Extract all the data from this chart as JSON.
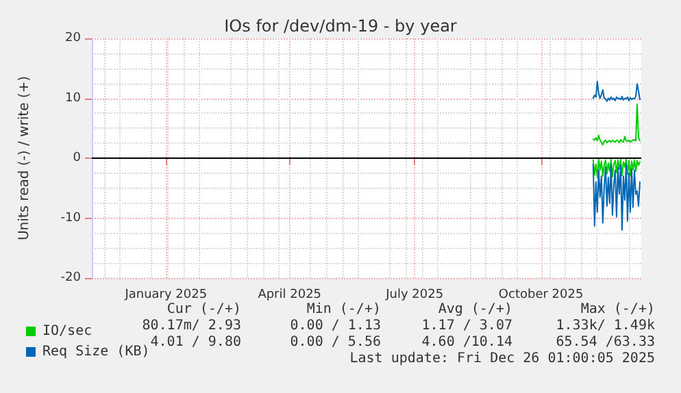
{
  "chart_data": {
    "type": "line",
    "title": "IOs for /dev/dm-19 - by year",
    "ylabel": "Units read (-) / write (+)",
    "x": [
      "2025-11-22",
      "2025-11-23",
      "2025-11-24",
      "2025-11-25",
      "2025-11-26",
      "2025-11-27",
      "2025-11-28",
      "2025-11-29",
      "2025-11-30",
      "2025-12-01",
      "2025-12-02",
      "2025-12-03",
      "2025-12-04",
      "2025-12-05",
      "2025-12-06",
      "2025-12-07",
      "2025-12-08",
      "2025-12-09",
      "2025-12-10",
      "2025-12-11",
      "2025-12-12",
      "2025-12-13",
      "2025-12-14",
      "2025-12-15",
      "2025-12-16",
      "2025-12-17",
      "2025-12-18",
      "2025-12-19",
      "2025-12-20",
      "2025-12-21",
      "2025-12-22",
      "2025-12-23",
      "2025-12-24",
      "2025-12-25",
      "2025-12-26"
    ],
    "series": [
      {
        "name": "IO/sec",
        "color": "#00cc00",
        "values": [
          3.2,
          3.0,
          3.4,
          2.9,
          3.8,
          3.0,
          2.6,
          2.2,
          2.8,
          3.0,
          2.6,
          2.8,
          2.9,
          2.7,
          3.0,
          2.8,
          2.7,
          3.0,
          2.9,
          2.6,
          3.1,
          2.8,
          2.7,
          3.6,
          2.9,
          2.8,
          3.0,
          2.7,
          2.9,
          3.0,
          3.1,
          2.9,
          9.0,
          3.4,
          2.9
        ]
      },
      {
        "color": "#00cc00",
        "values": [
          -0.3,
          -2.8,
          -1.0,
          -3.2,
          -0.2,
          -2.0,
          -0.5,
          -3.0,
          -1.2,
          -0.3,
          -2.6,
          -0.8,
          -2.2,
          -0.2,
          -3.1,
          -1.0,
          -0.4,
          -2.4,
          -0.3,
          -1.8,
          -0.2,
          -2.9,
          -0.6,
          -1.5,
          -0.2,
          -2.7,
          -0.4,
          -3.0,
          -0.5,
          -1.9,
          -0.3,
          -2.2,
          -0.4,
          -1.2,
          -0.6
        ]
      },
      {
        "name": "Req Size (KB)",
        "color": "#0066b3",
        "values": [
          10.0,
          10.5,
          10.2,
          12.8,
          10.8,
          10.0,
          10.6,
          11.4,
          10.0,
          9.9,
          9.5,
          10.0,
          9.7,
          10.2,
          9.8,
          10.0,
          9.6,
          10.2,
          9.9,
          10.0,
          9.8,
          10.3,
          9.7,
          10.0,
          9.9,
          10.2,
          9.6,
          10.1,
          9.8,
          10.0,
          9.9,
          10.3,
          12.4,
          11.2,
          9.8
        ]
      },
      {
        "color": "#0066b3",
        "values": [
          -1.0,
          -11.3,
          -4.0,
          -9.0,
          -2.0,
          -6.5,
          -3.0,
          -10.8,
          -5.0,
          -1.5,
          -8.0,
          -3.2,
          -7.5,
          -1.0,
          -9.5,
          -4.5,
          -2.0,
          -9.8,
          -1.5,
          -6.0,
          -1.2,
          -12.0,
          -3.0,
          -7.0,
          -1.0,
          -10.5,
          -2.5,
          -9.0,
          -1.8,
          -8.2,
          -2.0,
          -6.0,
          -5.5,
          -8.0,
          -4.0
        ]
      }
    ],
    "xlim": [
      "2024-11-22",
      "2025-12-27"
    ],
    "xticks": [
      {
        "value": "2025-01-15",
        "label": "January 2025"
      },
      {
        "value": "2025-04-15",
        "label": "April 2025"
      },
      {
        "value": "2025-07-15",
        "label": "July 2025"
      },
      {
        "value": "2025-10-15",
        "label": "October 2025"
      }
    ],
    "ylim": [
      -20,
      20
    ],
    "yticks": [
      -20,
      -10,
      0,
      10,
      20
    ],
    "grid": true,
    "legend": "bottom left",
    "marker": "none",
    "line_style": "solid",
    "ref_lines": [
      {
        "axis": "y",
        "value": 0,
        "color": "#000000"
      }
    ],
    "annotations": [
      "Cur (-/+)",
      "Min (-/+)",
      "Avg (-/+)",
      "Max (-/+)",
      "80.17m/ 2.93",
      "0.00 / 1.13",
      "1.17 / 3.07",
      "1.33k/ 1.49k",
      "4.01 / 9.80",
      "0.00 / 5.56",
      "4.60 /10.14",
      "65.54 /63.33",
      "Last update: Fri Dec 26 01:00:05 2025"
    ]
  }
}
